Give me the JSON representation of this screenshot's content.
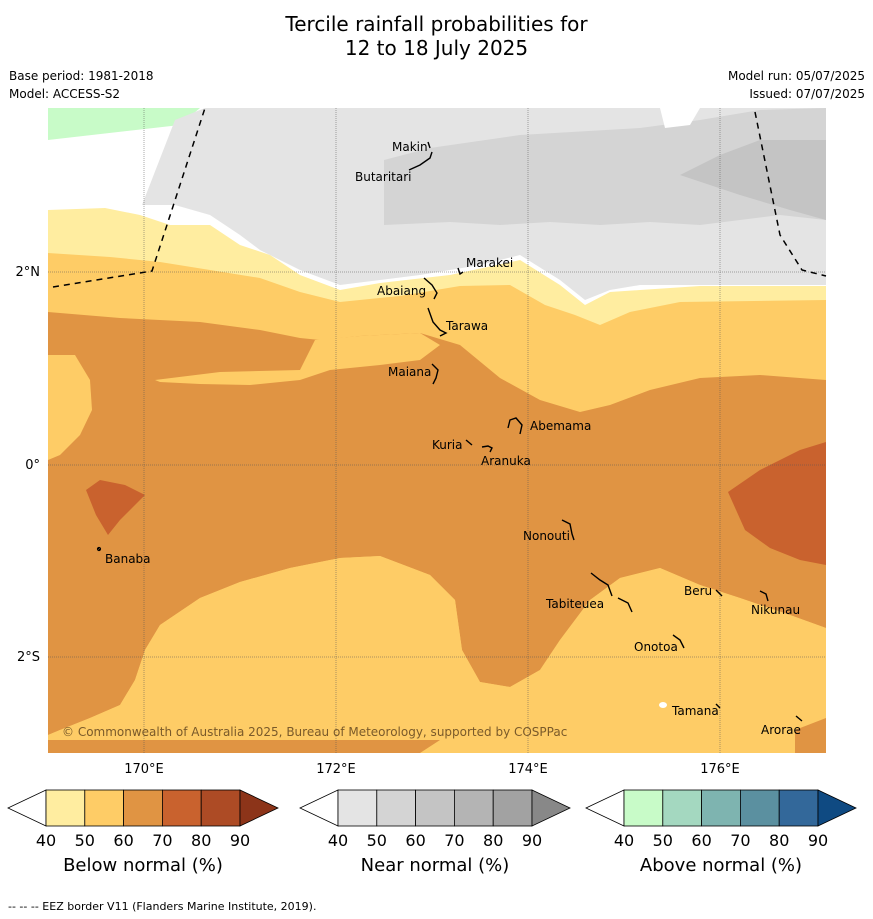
{
  "title": {
    "line1": "Tercile rainfall probabilities for",
    "line2": "12 to 18 July 2025"
  },
  "meta": {
    "base_period": "Base period: 1981-2018",
    "model": "Model: ACCESS-S2",
    "model_run": "Model run: 05/07/2025",
    "issued": "Issued: 07/07/2025"
  },
  "map": {
    "lat_labels": [
      "2°N",
      "0°",
      "2°S"
    ],
    "lon_labels": [
      "170°E",
      "172°E",
      "174°E",
      "176°E"
    ],
    "islands": [
      "Makin",
      "Butaritari",
      "Marakei",
      "Abaiang",
      "Tarawa",
      "Maiana",
      "Abemama",
      "Kuria",
      "Aranuka",
      "Banaba",
      "Nonouti",
      "Tabiteuea",
      "Beru",
      "Nikunau",
      "Onotoa",
      "Tamana",
      "Arorae"
    ],
    "copyright": "© Commonwealth of Australia 2025, Bureau of Meteorology, supported by COSPPac"
  },
  "colorbars": [
    {
      "title": "Below normal (%)",
      "ticks": [
        "40",
        "50",
        "60",
        "70",
        "80",
        "90"
      ],
      "colors": [
        "#ffeda0",
        "#fecc66",
        "#e09443",
        "#c9622e",
        "#ad4b25",
        "#8c3419"
      ]
    },
    {
      "title": "Near normal (%)",
      "ticks": [
        "40",
        "50",
        "60",
        "70",
        "80",
        "90"
      ],
      "colors": [
        "#e4e4e4",
        "#d4d4d4",
        "#c4c4c4",
        "#b4b4b4",
        "#a2a2a2",
        "#888888"
      ]
    },
    {
      "title": "Above normal (%)",
      "ticks": [
        "40",
        "50",
        "60",
        "70",
        "80",
        "90"
      ],
      "colors": [
        "#c8fbc8",
        "#a4d8c0",
        "#7eb4b0",
        "#5b90a0",
        "#33689a",
        "#0f4a82"
      ]
    }
  ],
  "footer": "--  --  -- EEZ border V11 (Flanders Marine Institute, 2019)."
}
